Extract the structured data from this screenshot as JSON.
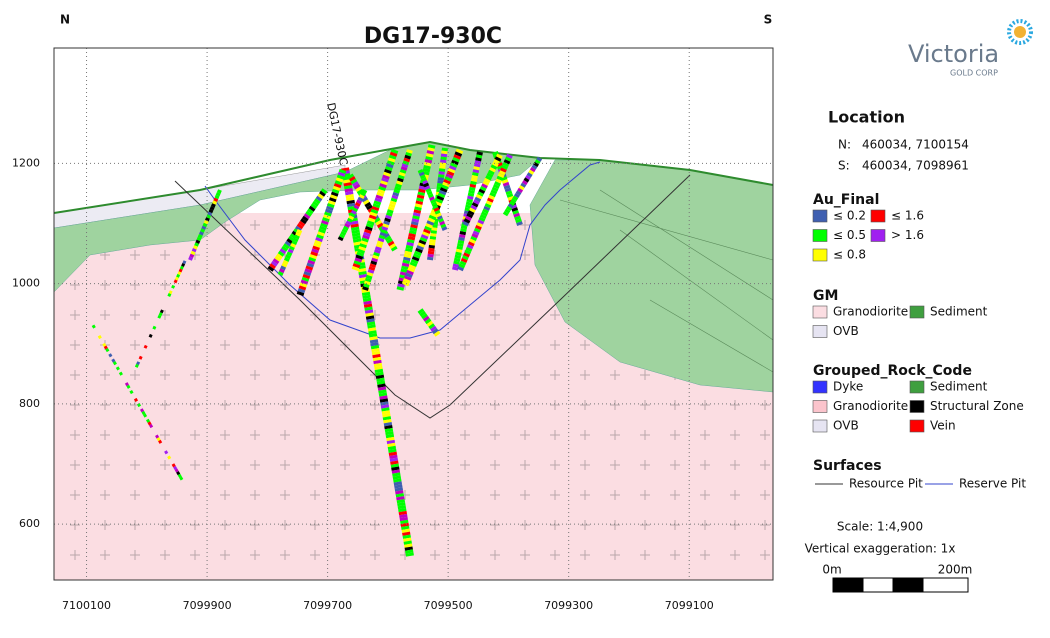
{
  "header": {
    "title": "DG17-930C",
    "left": "N",
    "right": "S"
  },
  "logo": {
    "name": "Victoria",
    "sub": "GOLD CORP"
  },
  "section": {
    "hole_label": "DG17-930C",
    "xlim": [
      7100154,
      7098961
    ],
    "xticks": [
      7100100,
      7099900,
      7099700,
      7099500,
      7099300,
      7099100
    ],
    "ylim": [
      507,
      1392
    ],
    "yticks": [
      600,
      800,
      1000,
      1200
    ],
    "grid": true
  },
  "legend": {
    "location": {
      "title": "Location",
      "rows": [
        {
          "key": "N:",
          "value": "460034, 7100154"
        },
        {
          "key": "S:",
          "value": "460034, 7098961"
        }
      ]
    },
    "au_final": {
      "title": "Au_Final",
      "items": [
        {
          "label": "≤ 0.2",
          "color": "#3f5fb0"
        },
        {
          "label": "≤ 1.6",
          "color": "#ff0000"
        },
        {
          "label": "≤ 0.5",
          "color": "#00ff00"
        },
        {
          "label": "> 1.6",
          "color": "#a020f0"
        },
        {
          "label": "≤ 0.8",
          "color": "#ffff00"
        }
      ]
    },
    "gm": {
      "title": "GM",
      "items": [
        {
          "label": "Granodiorite",
          "color": "#fbdde2"
        },
        {
          "label": "Sediment",
          "color": "#3f9f3f"
        },
        {
          "label": "OVB",
          "color": "#e6e4f2"
        }
      ]
    },
    "rock_code": {
      "title": "Grouped_Rock_Code",
      "items": [
        {
          "label": "Dyke",
          "color": "#3333ff"
        },
        {
          "label": "Sediment",
          "color": "#3f9f3f"
        },
        {
          "label": "Granodiorite",
          "color": "#fbc4cc"
        },
        {
          "label": "Structural Zone",
          "color": "#000000"
        },
        {
          "label": "OVB",
          "color": "#e6e4f2"
        },
        {
          "label": "Vein",
          "color": "#ff0000"
        }
      ]
    },
    "surfaces": {
      "title": "Surfaces",
      "items": [
        {
          "label": "Resource Pit",
          "color": "#333333"
        },
        {
          "label": "Reserve Pit",
          "color": "#3344cc"
        }
      ]
    }
  },
  "scale": {
    "ratio": "Scale: 1:4,900",
    "exaggeration": "Vertical exaggeration: 1x",
    "start": "0m",
    "end": "200m"
  }
}
